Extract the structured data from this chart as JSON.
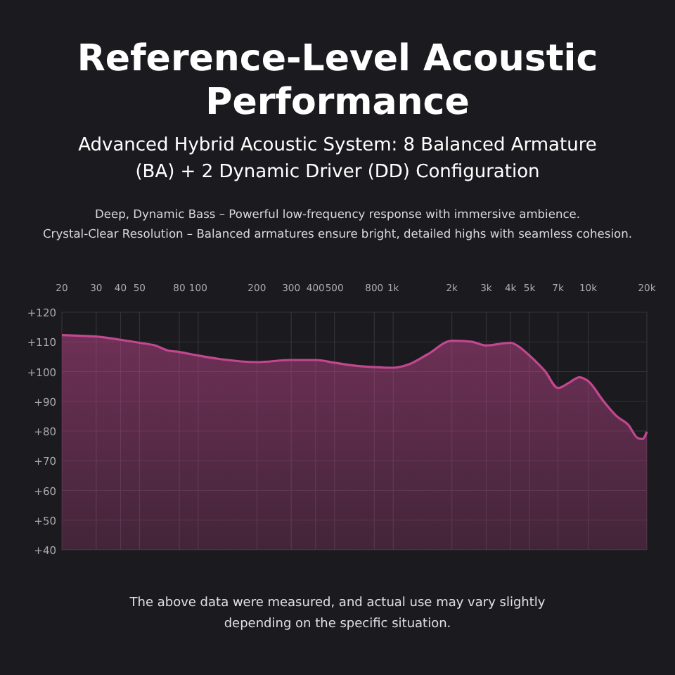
{
  "chart_data": {
    "type": "area",
    "title": "Reference-Level Acoustic Performance",
    "subtitle": "Advanced Hybrid Acoustic System: 8 Balanced Armature (BA) + 2 Dynamic Driver (DD) Configuration",
    "annotations": [
      "Deep, Dynamic Bass – Powerful low-frequency response with immersive ambience.",
      "Crystal-Clear Resolution – Balanced armatures ensure bright, detailed highs with seamless cohesion.",
      "The above data were measured, and actual use may vary slightly depending on the specific situation."
    ],
    "x": [
      20,
      30,
      40,
      50,
      60,
      70,
      80,
      100,
      130,
      200,
      300,
      400,
      500,
      600,
      800,
      1000,
      1200,
      1500,
      2000,
      2500,
      3000,
      4000,
      4500,
      5000,
      6000,
      7000,
      8000,
      9000,
      10000,
      12000,
      14000,
      16000,
      18000,
      19000,
      20000
    ],
    "series": [
      {
        "color": "#c2478f",
        "values": [
          112.3,
          111.8,
          110.7,
          109.7,
          108.8,
          107.1,
          106.6,
          105.4,
          104.2,
          103.2,
          103.9,
          103.9,
          103,
          102.2,
          101.5,
          101.3,
          102.4,
          105.8,
          110.4,
          110.1,
          108.8,
          109.7,
          108,
          105.4,
          100.2,
          94.5,
          96.3,
          98.1,
          96.8,
          90,
          85,
          82.2,
          77.6,
          77.3,
          79.8
        ]
      }
    ],
    "log": "x",
    "xlim": [
      20,
      20000
    ],
    "xticks": [
      20,
      30,
      40,
      50,
      80,
      100,
      200,
      300,
      400,
      500,
      800,
      {
        "value": 1000,
        "label": "1k"
      },
      {
        "value": 2000,
        "label": "2k"
      },
      {
        "value": 3000,
        "label": "3k"
      },
      {
        "value": 4000,
        "label": "4k"
      },
      {
        "value": 5000,
        "label": "5k"
      },
      {
        "value": 7000,
        "label": "7k"
      },
      {
        "value": 10000,
        "label": "10k"
      },
      {
        "value": 20000,
        "label": "20k"
      }
    ],
    "ylim": [
      40,
      120
    ],
    "yticks": [
      {
        "value": 40,
        "label": "+40"
      },
      {
        "value": 50,
        "label": "+50"
      },
      {
        "value": 60,
        "label": "+60"
      },
      {
        "value": 70,
        "label": "+70"
      },
      {
        "value": 80,
        "label": "+80"
      },
      {
        "value": 90,
        "label": "+90"
      },
      {
        "value": 100,
        "label": "+100"
      },
      {
        "value": 110,
        "label": "+110"
      },
      {
        "value": 120,
        "label": "+120"
      }
    ],
    "grid": true
  }
}
